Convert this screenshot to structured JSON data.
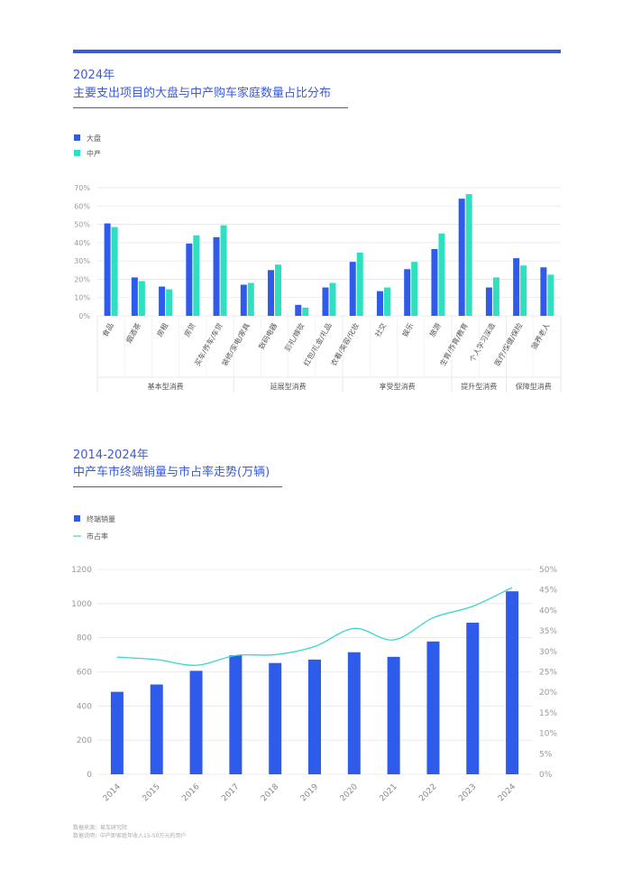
{
  "colors": {
    "accent": "#3b5bd6",
    "bar_blue": "#2f5bea",
    "bar_teal": "#2ee0c0",
    "line_teal": "#3ad6c8"
  },
  "chart1": {
    "year_title": "2024年",
    "main_title": "主要支出项目的大盘与中产购车家庭数量占比分布"
  },
  "chart2": {
    "year_title": "2014-2024年",
    "main_title": "中产车市终端销量与市占率走势(万辆)"
  },
  "footnotes": {
    "source": "数据来源：易车研究院",
    "note": "数据说明：中产即家庭年收入15-50万元的用户"
  },
  "chart_data": [
    {
      "type": "bar",
      "title": "主要支出项目的大盘与中产购车家庭数量占比分布",
      "categories": [
        "食品",
        "烟酒茶",
        "房租",
        "房贷",
        "买车/养车/车贷",
        "装修/家电/家具",
        "数码电器",
        "彩礼/嫁妆",
        "红包/礼金/礼品",
        "衣着/美容/化妆",
        "社交",
        "娱乐",
        "旅游",
        "生育/养育/教育",
        "个人学习深造",
        "医疗/保健/保险",
        "赡养老人"
      ],
      "series": [
        {
          "name": "大盘",
          "values": [
            50.5,
            21,
            16,
            39.5,
            43,
            17,
            25,
            6,
            15.5,
            29.5,
            13.5,
            25.5,
            36.5,
            64,
            15.5,
            31.5,
            26.5
          ]
        },
        {
          "name": "中产",
          "values": [
            48.5,
            19,
            14.5,
            44,
            49.5,
            18,
            28,
            4.5,
            18,
            34.5,
            15.5,
            29.5,
            45,
            66.5,
            21,
            27.5,
            22.5
          ]
        }
      ],
      "groups": [
        {
          "label": "基本型消费",
          "count": 5
        },
        {
          "label": "延展型消费",
          "count": 4
        },
        {
          "label": "享受型消费",
          "count": 4
        },
        {
          "label": "提升型消费",
          "count": 2
        },
        {
          "label": "保障型消费",
          "count": 2
        }
      ],
      "yticks": [
        "0%",
        "10%",
        "20%",
        "30%",
        "40%",
        "50%",
        "60%",
        "70%"
      ],
      "ylim": [
        0,
        70
      ],
      "legend": "top-left"
    },
    {
      "type": "bar+line",
      "title": "中产车市终端销量与市占率走势(万辆)",
      "categories": [
        "2014",
        "2015",
        "2016",
        "2017",
        "2018",
        "2019",
        "2020",
        "2021",
        "2022",
        "2023",
        "2024"
      ],
      "series": [
        {
          "name": "终端销量",
          "type": "bar",
          "values": [
            483,
            526,
            606,
            697,
            652,
            672,
            715,
            688,
            778,
            888,
            1072
          ]
        },
        {
          "name": "市占率",
          "type": "line",
          "values": [
            28.6,
            28.0,
            26.6,
            29.0,
            29.2,
            31.2,
            35.6,
            32.8,
            38.2,
            41.0,
            45.6
          ]
        }
      ],
      "yticks_left": [
        "0",
        "200",
        "400",
        "600",
        "800",
        "1000",
        "1200"
      ],
      "ylim_left": [
        0,
        1200
      ],
      "yticks_right": [
        "0%",
        "5%",
        "10%",
        "15%",
        "20%",
        "25%",
        "30%",
        "35%",
        "40%",
        "45%",
        "50%"
      ],
      "ylim_right": [
        0,
        50
      ],
      "legend": "top-left"
    }
  ]
}
